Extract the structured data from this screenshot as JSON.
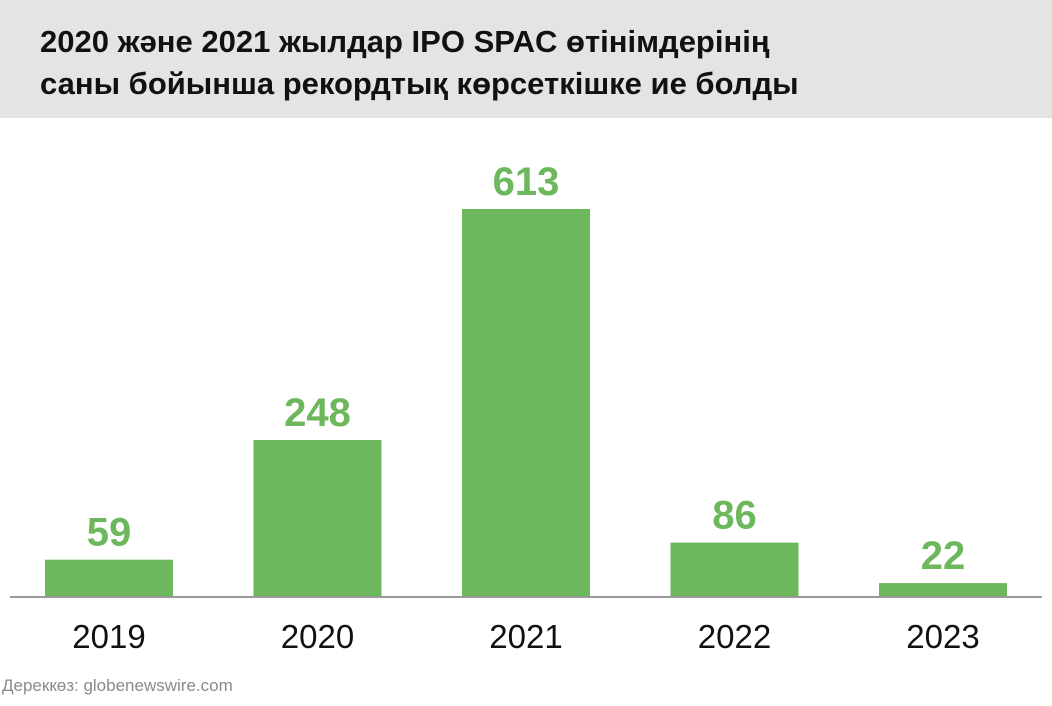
{
  "header": {
    "title_line_1": "2020 және 2021 жылдар IPO SPAC өтінімдерінің",
    "title_line_2": "саны бойынша рекордтық көрсеткішке ие болды"
  },
  "source": "Дереккөз: globenewswire.com",
  "colors": {
    "bar": "#6db85c",
    "header_background": "#e4e4e4",
    "axis": "#9a9a9a"
  },
  "chart_data": {
    "type": "bar",
    "title": "2020 және 2021 жылдар IPO SPAC өтінімдерінің саны бойынша рекордтық көрсеткішке ие болды",
    "categories": [
      "2019",
      "2020",
      "2021",
      "2022",
      "2023"
    ],
    "values": [
      59,
      248,
      613,
      86,
      22
    ],
    "xlabel": "",
    "ylabel": "",
    "ylim": [
      0,
      613
    ],
    "grid": false,
    "legend": "none",
    "data_labels": true
  }
}
